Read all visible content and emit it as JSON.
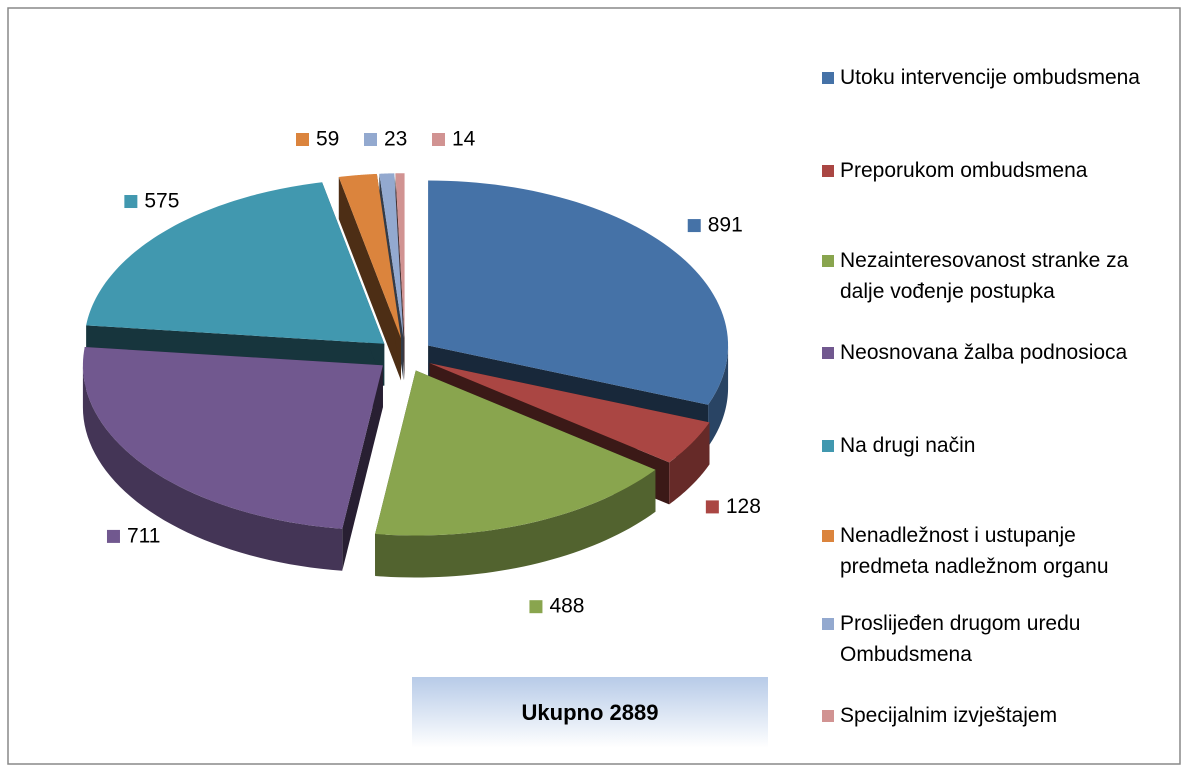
{
  "chart_data": {
    "type": "pie",
    "categories": [
      "Utoku intervencije ombudsmena",
      "Preporukom ombudsmena",
      "Nezainteresovanost stranke za dalje vođenje postupka",
      "Neosnovana žalba podnosioca",
      "Na drugi način",
      "Nenadležnost i ustupanje predmeta nadležnom organu",
      "Proslijeđen drugom uredu Ombudsmena",
      "Specijalnim izvještajem"
    ],
    "values": [
      891,
      128,
      488,
      711,
      575,
      59,
      23,
      14
    ],
    "colors": [
      "#4572a7",
      "#aa4643",
      "#89a54e",
      "#71588f",
      "#4198af",
      "#db843d",
      "#93a9cf",
      "#d19392"
    ],
    "annotation": "Ukupno  2889",
    "legend": "right"
  }
}
